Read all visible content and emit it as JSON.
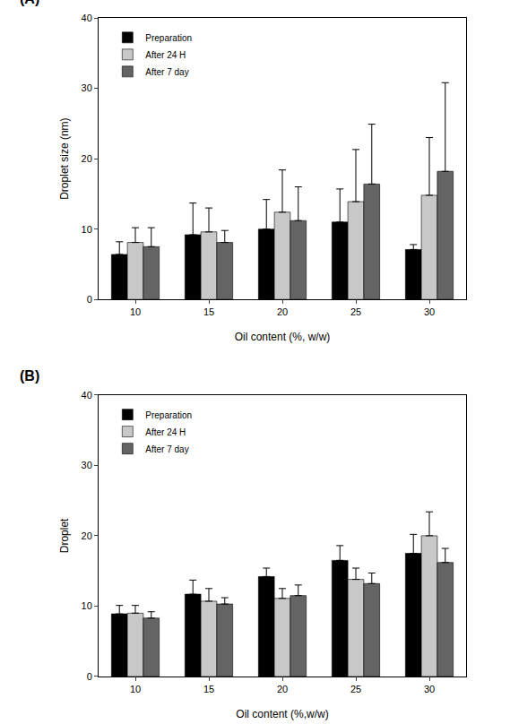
{
  "chart_data": [
    {
      "type": "bar",
      "title": "(A)",
      "x_label": "Oil content (%, w/w)",
      "y_label": "Droplet size (nm)",
      "categories": [
        "10",
        "15",
        "20",
        "25",
        "30"
      ],
      "series": [
        {
          "name": "Preparation",
          "color": "#000000",
          "values": [
            6.4,
            9.2,
            10.0,
            11.0,
            7.1
          ],
          "errors": [
            1.8,
            4.5,
            4.2,
            4.7,
            0.7
          ]
        },
        {
          "name": "After 24 H",
          "color": "#c8c8c8",
          "values": [
            8.1,
            9.6,
            12.4,
            13.9,
            14.8
          ],
          "errors": [
            2.1,
            3.4,
            6.0,
            7.4,
            8.2
          ]
        },
        {
          "name": "After 7 day",
          "color": "#646464",
          "values": [
            7.5,
            8.1,
            11.2,
            16.4,
            18.2
          ],
          "errors": [
            2.7,
            1.7,
            4.8,
            8.5,
            12.6
          ]
        }
      ],
      "ylim": [
        0,
        40
      ],
      "yticks": [
        0,
        10,
        20,
        30,
        40
      ],
      "grid": false,
      "legend": "upper left"
    },
    {
      "type": "bar",
      "title": "(B)",
      "x_label": "Oil content (%,w/w)",
      "y_label": "Droplet",
      "categories": [
        "10",
        "15",
        "20",
        "25",
        "30"
      ],
      "series": [
        {
          "name": "Preparation",
          "color": "#000000",
          "values": [
            8.9,
            11.7,
            14.2,
            16.5,
            17.5
          ],
          "errors": [
            1.2,
            2.0,
            1.2,
            2.1,
            2.7
          ]
        },
        {
          "name": "After 24 H",
          "color": "#c8c8c8",
          "values": [
            9.0,
            10.7,
            11.1,
            13.8,
            20.0
          ],
          "errors": [
            1.1,
            1.8,
            1.4,
            1.6,
            3.4
          ]
        },
        {
          "name": "After 7 day",
          "color": "#646464",
          "values": [
            8.3,
            10.3,
            11.5,
            13.2,
            16.2
          ],
          "errors": [
            0.9,
            0.9,
            1.5,
            1.5,
            2.0
          ]
        }
      ],
      "ylim": [
        0,
        40
      ],
      "yticks": [
        0,
        10,
        20,
        30,
        40
      ],
      "grid": false,
      "legend": "upper left"
    }
  ]
}
